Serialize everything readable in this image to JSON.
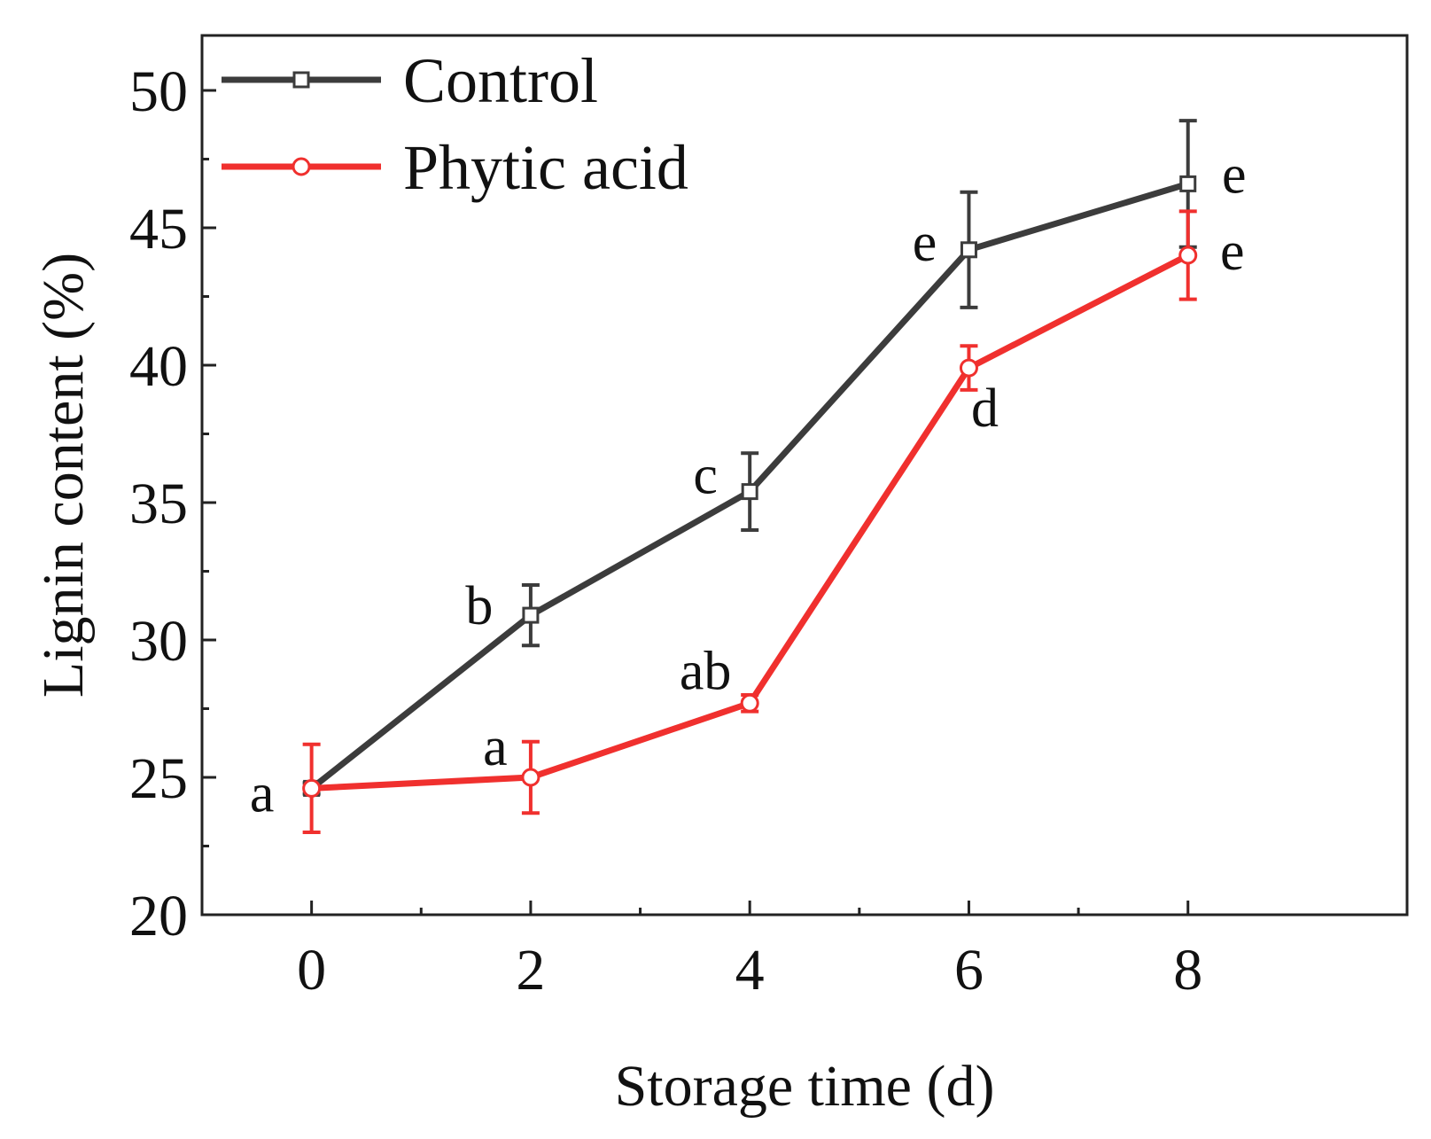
{
  "chart_data": {
    "type": "line",
    "title": "",
    "xlabel": "Storage time (d)",
    "ylabel": "Lignin content (%)",
    "xlim": [
      -1,
      10
    ],
    "ylim": [
      20,
      52
    ],
    "x_ticks": [
      0,
      2,
      4,
      6,
      8
    ],
    "x_tick_labels": [
      "0",
      "2",
      "4",
      "6",
      "8"
    ],
    "y_ticks": [
      20,
      25,
      30,
      35,
      40,
      45,
      50
    ],
    "y_tick_labels": [
      "20",
      "25",
      "30",
      "35",
      "40",
      "45",
      "50"
    ],
    "grid": false,
    "legend_position": "top-left",
    "series": [
      {
        "name": "Control",
        "color": "#3c3c3c",
        "marker": "square",
        "x": [
          0,
          2,
          4,
          6,
          8
        ],
        "y": [
          24.6,
          30.9,
          35.4,
          44.2,
          46.6
        ],
        "error": [
          0.2,
          1.1,
          1.4,
          2.1,
          2.3
        ],
        "letters": [
          "",
          "b",
          "c",
          "e",
          "e"
        ]
      },
      {
        "name": "Phytic acid",
        "color": "#f0302e",
        "marker": "circle",
        "x": [
          0,
          2,
          4,
          6,
          8
        ],
        "y": [
          24.6,
          25.0,
          27.7,
          39.9,
          44.0
        ],
        "error": [
          1.6,
          1.3,
          0.3,
          0.8,
          1.6
        ],
        "letters": [
          "a",
          "a",
          "ab",
          "d",
          "e"
        ]
      }
    ]
  }
}
